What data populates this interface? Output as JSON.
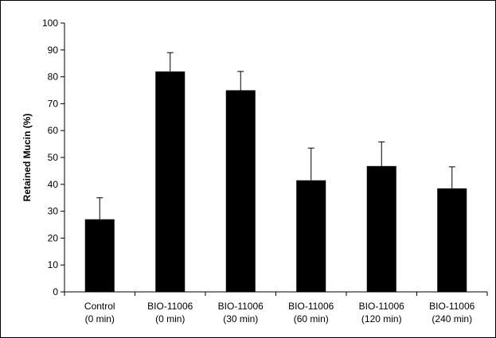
{
  "chart_data": {
    "type": "bar",
    "title": "",
    "xlabel": "",
    "ylabel": "Retained Mucin (%)",
    "ylim": [
      0,
      100
    ],
    "yticks": [
      0,
      10,
      20,
      30,
      40,
      50,
      60,
      70,
      80,
      90,
      100
    ],
    "grid": false,
    "legend": "none",
    "categories": [
      [
        "Control",
        "(0 min)"
      ],
      [
        "BIO-11006",
        "(0 min)"
      ],
      [
        "BIO-11006",
        "(30 min)"
      ],
      [
        "BIO-11006",
        "(60 min)"
      ],
      [
        "BIO-11006",
        "(120 min)"
      ],
      [
        "BIO-11006",
        "(240 min)"
      ]
    ],
    "values": [
      27,
      82,
      75,
      41.5,
      46.8,
      38.5
    ],
    "error_plus": [
      8,
      7,
      7,
      12,
      9,
      8
    ],
    "bar_color": "#000000"
  }
}
